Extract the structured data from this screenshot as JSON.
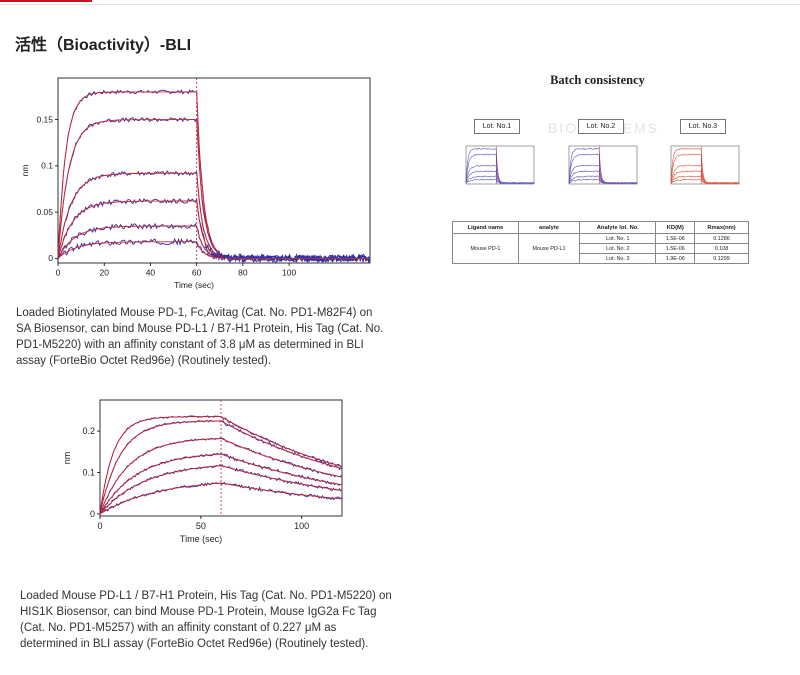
{
  "heading": "活性（Bioactivity）-BLI",
  "captions": {
    "first": "Loaded Biotinylated Mouse PD-1, Fc,Avitag (Cat. No. PD1-M82F4) on SA Biosensor, can bind Mouse PD-L1 / B7-H1 Protein, His Tag (Cat. No. PD1-M5220) with an affinity constant of 3.8 μM as determined in BLI assay (ForteBio Octet Red96e) (Routinely tested).",
    "second": "Loaded Mouse PD-L1 / B7-H1 Protein, His Tag (Cat. No. PD1-M5220) on HIS1K Biosensor, can bind Mouse PD-1 Protein, Mouse IgG2a Fc Tag (Cat. No. PD1-M5257) with an affinity constant of 0.227 μM as determined in BLI assay (ForteBio Octet Red96e) (Routinely tested)."
  },
  "batch": {
    "title": "Batch consistency",
    "watermark": "BIOSYSTEMS",
    "lots": [
      "Lot. No.1",
      "Lot. No.2",
      "Lot. No.3"
    ],
    "table": {
      "headers": [
        "Ligand name",
        "analyte",
        "Analyte lot. No.",
        "KD(M)",
        "Rmax(nm)"
      ],
      "ligand": "Mouse PD-1",
      "analyte": "Mouse PD-L1",
      "rows": [
        {
          "lot": "Lot. No. 1",
          "kd": "1.5E-06",
          "rmax": "0.1286"
        },
        {
          "lot": "Lot. No. 2",
          "kd": "1.5E-06",
          "rmax": "0.108"
        },
        {
          "lot": "Lot. No. 3",
          "kd": "1.9E-06",
          "rmax": "0.1299"
        }
      ]
    }
  },
  "colors": {
    "data": "#2b2fa6",
    "fit": "#d2262c",
    "lot3": "#e0523a"
  },
  "chart_data": [
    {
      "type": "line",
      "title": "",
      "xlabel": "Time (sec)",
      "ylabel": "nm",
      "xlim": [
        0,
        135
      ],
      "ylim": [
        -0.005,
        0.195
      ],
      "xticks": [
        0,
        20,
        40,
        60,
        80,
        100
      ],
      "yticks": [
        0,
        0.05,
        0.1,
        0.15
      ],
      "ytick_labels": [
        "0",
        "0.05",
        "0.1",
        "0.15"
      ],
      "association_end": 60,
      "dissociation_k": 0.35,
      "series_plateaus": [
        0.18,
        0.15,
        0.092,
        0.062,
        0.035,
        0.018
      ],
      "series_k": [
        0.3,
        0.22,
        0.18,
        0.16,
        0.14,
        0.13
      ]
    },
    {
      "type": "line",
      "title": "",
      "xlabel": "Time (sec)",
      "ylabel": "nm",
      "xlim": [
        0,
        120
      ],
      "ylim": [
        -0.005,
        0.275
      ],
      "xticks": [
        0,
        50,
        100
      ],
      "yticks": [
        0,
        0.1,
        0.2
      ],
      "ytick_labels": [
        "0",
        "0.1",
        "0.2"
      ],
      "association_end": 60,
      "dissociation_k": 0.012,
      "series_plateaus": [
        0.235,
        0.225,
        0.185,
        0.15,
        0.125,
        0.085
      ],
      "series_k": [
        0.15,
        0.1,
        0.07,
        0.055,
        0.045,
        0.035
      ]
    }
  ]
}
